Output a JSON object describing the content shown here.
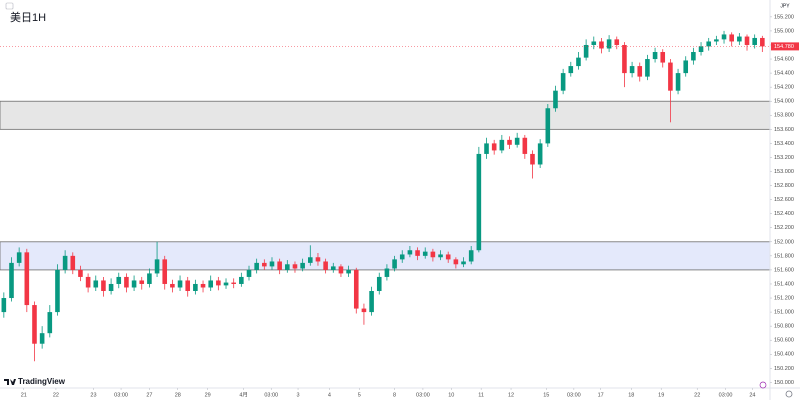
{
  "chart_data": {
    "type": "candlestick",
    "title": "美日1H",
    "currency": "JPY",
    "watermark": "TradingView",
    "up_color": "#089981",
    "down_color": "#f23645",
    "xlim": [
      -0.5,
      100
    ],
    "ylim": [
      149.92,
      155.44
    ],
    "yticks": [
      {
        "value": 155.2,
        "label": "155.200"
      },
      {
        "value": 155.0,
        "label": "155.000"
      },
      {
        "value": 154.8,
        "label": "154.800"
      },
      {
        "value": 154.6,
        "label": "154.600"
      },
      {
        "value": 154.4,
        "label": "154.400"
      },
      {
        "value": 154.2,
        "label": "154.200"
      },
      {
        "value": 154.0,
        "label": "154.000"
      },
      {
        "value": 153.8,
        "label": "153.800"
      },
      {
        "value": 153.6,
        "label": "153.600"
      },
      {
        "value": 153.4,
        "label": "153.400"
      },
      {
        "value": 153.2,
        "label": "153.200"
      },
      {
        "value": 153.0,
        "label": "153.000"
      },
      {
        "value": 152.8,
        "label": "152.800"
      },
      {
        "value": 152.6,
        "label": "152.600"
      },
      {
        "value": 152.4,
        "label": "152.400"
      },
      {
        "value": 152.2,
        "label": "152.200"
      },
      {
        "value": 152.0,
        "label": "152.000"
      },
      {
        "value": 151.8,
        "label": "151.800"
      },
      {
        "value": 151.6,
        "label": "151.600"
      },
      {
        "value": 151.4,
        "label": "151.400"
      },
      {
        "value": 151.2,
        "label": "151.200"
      },
      {
        "value": 151.0,
        "label": "151.000"
      },
      {
        "value": 150.8,
        "label": "150.800"
      },
      {
        "value": 150.6,
        "label": "150.600"
      },
      {
        "value": 150.4,
        "label": "150.400"
      },
      {
        "value": 150.2,
        "label": "150.200"
      },
      {
        "value": 150.0,
        "label": "150.000"
      }
    ],
    "xticks": [
      {
        "value": 2.6,
        "label": "21"
      },
      {
        "value": 6.8,
        "label": "22"
      },
      {
        "value": 11.7,
        "label": "23"
      },
      {
        "value": 15.3,
        "label": "03:00"
      },
      {
        "value": 19,
        "label": "27"
      },
      {
        "value": 22.7,
        "label": "28"
      },
      {
        "value": 26.6,
        "label": "29"
      },
      {
        "value": 31.3,
        "label": "4月"
      },
      {
        "value": 34.9,
        "label": "03:00"
      },
      {
        "value": 38.4,
        "label": "3"
      },
      {
        "value": 42.5,
        "label": "4"
      },
      {
        "value": 46.4,
        "label": "5"
      },
      {
        "value": 51,
        "label": "8"
      },
      {
        "value": 54.7,
        "label": "03:00"
      },
      {
        "value": 58.4,
        "label": "10"
      },
      {
        "value": 62.3,
        "label": "11"
      },
      {
        "value": 66.2,
        "label": "12"
      },
      {
        "value": 70.8,
        "label": "15"
      },
      {
        "value": 74.4,
        "label": "03:00"
      },
      {
        "value": 77.9,
        "label": "17"
      },
      {
        "value": 81.9,
        "label": "18"
      },
      {
        "value": 85.8,
        "label": "19"
      },
      {
        "value": 90.5,
        "label": "22"
      },
      {
        "value": 94.2,
        "label": "03:00"
      },
      {
        "value": 97.7,
        "label": "24"
      }
    ],
    "zones": [
      {
        "from": 153.6,
        "to": 154.0,
        "color": "#e6e6e6"
      },
      {
        "from": 151.6,
        "to": 152.0,
        "color": "#e4e9fb"
      }
    ],
    "last_price": {
      "value": 154.78,
      "label": "154.780"
    },
    "open": [
      151.0,
      151.2,
      151.7,
      151.85,
      151.1,
      150.55,
      150.7,
      151.0,
      151.6,
      151.8,
      151.6,
      151.5,
      151.35,
      151.45,
      151.3,
      151.4,
      151.5,
      151.35,
      151.45,
      151.4,
      151.55,
      151.75,
      151.4,
      151.35,
      151.45,
      151.3,
      151.4,
      151.35,
      151.45,
      151.38,
      151.42,
      151.4,
      151.5,
      151.6,
      151.7,
      151.65,
      151.72,
      151.6,
      151.68,
      151.62,
      151.7,
      151.78,
      151.72,
      151.6,
      151.65,
      151.55,
      151.6,
      151.05,
      151.0,
      151.3,
      151.5,
      151.62,
      151.75,
      151.82,
      151.88,
      151.8,
      151.86,
      151.78,
      151.82,
      151.75,
      151.68,
      151.72,
      151.88,
      153.25,
      153.4,
      153.3,
      153.45,
      153.38,
      153.48,
      153.25,
      153.1,
      153.4,
      153.9,
      154.15,
      154.4,
      154.5,
      154.62,
      154.8,
      154.85,
      154.75,
      154.88,
      154.8,
      154.4,
      154.5,
      154.35,
      154.6,
      154.7,
      154.55,
      154.15,
      154.4,
      154.58,
      154.7,
      154.78,
      154.85,
      154.88,
      154.95,
      154.85,
      154.92,
      154.8,
      154.9
    ],
    "high": [
      151.28,
      151.78,
      151.92,
      151.9,
      151.15,
      150.8,
      151.1,
      151.68,
      151.88,
      151.85,
      151.66,
      151.55,
      151.52,
      151.5,
      151.48,
      151.56,
      151.55,
      151.52,
      151.5,
      151.62,
      152.0,
      151.8,
      151.46,
      151.52,
      151.5,
      151.46,
      151.45,
      151.52,
      151.5,
      151.48,
      151.48,
      151.56,
      151.66,
      151.76,
      151.75,
      151.78,
      151.76,
      151.74,
      151.72,
      151.76,
      151.95,
      151.84,
      151.76,
      151.7,
      151.68,
      151.66,
      151.63,
      151.12,
      151.36,
      151.56,
      151.68,
      151.8,
      151.88,
      151.94,
      151.92,
      151.92,
      151.9,
      151.88,
      151.86,
      151.78,
      151.78,
      151.94,
      153.35,
      153.48,
      153.45,
      153.52,
      153.5,
      153.55,
      153.52,
      153.3,
      153.46,
      153.96,
      154.22,
      154.46,
      154.56,
      154.7,
      154.88,
      154.92,
      154.9,
      154.94,
      154.92,
      154.84,
      154.56,
      154.55,
      154.66,
      154.76,
      154.74,
      154.6,
      154.46,
      154.64,
      154.76,
      154.84,
      154.9,
      154.93,
      155.0,
      154.98,
      154.97,
      154.95,
      154.95,
      154.93
    ],
    "low": [
      150.92,
      151.15,
      151.65,
      151.0,
      150.3,
      150.48,
      150.64,
      150.95,
      151.55,
      151.54,
      151.44,
      151.28,
      151.3,
      151.22,
      151.25,
      151.34,
      151.28,
      151.3,
      151.32,
      151.35,
      151.5,
      151.32,
      151.28,
      151.3,
      151.22,
      151.25,
      151.28,
      151.3,
      151.31,
      151.33,
      151.34,
      151.36,
      151.45,
      151.55,
      151.6,
      151.6,
      151.54,
      151.56,
      151.56,
      151.58,
      151.66,
      151.66,
      151.55,
      151.56,
      151.5,
      151.5,
      150.98,
      150.82,
      150.95,
      151.25,
      151.45,
      151.58,
      151.7,
      151.78,
      151.74,
      151.76,
      151.72,
      151.74,
      151.7,
      151.62,
      151.64,
      151.68,
      151.85,
      153.18,
      153.24,
      153.26,
      153.32,
      153.34,
      153.18,
      152.9,
      153.05,
      153.35,
      153.85,
      154.1,
      154.35,
      154.45,
      154.58,
      154.74,
      154.68,
      154.7,
      154.74,
      154.2,
      154.34,
      154.28,
      154.3,
      154.55,
      154.48,
      153.7,
      154.1,
      154.35,
      154.52,
      154.65,
      154.72,
      154.8,
      154.82,
      154.78,
      154.8,
      154.72,
      154.75,
      154.7
    ],
    "close": [
      151.2,
      151.7,
      151.85,
      151.1,
      150.55,
      150.7,
      151.0,
      151.6,
      151.8,
      151.6,
      151.5,
      151.35,
      151.45,
      151.3,
      151.4,
      151.5,
      151.35,
      151.45,
      151.4,
      151.55,
      151.75,
      151.4,
      151.35,
      151.45,
      151.3,
      151.4,
      151.35,
      151.45,
      151.38,
      151.42,
      151.4,
      151.5,
      151.6,
      151.7,
      151.65,
      151.72,
      151.6,
      151.68,
      151.62,
      151.7,
      151.78,
      151.72,
      151.6,
      151.65,
      151.55,
      151.6,
      151.05,
      151.0,
      151.3,
      151.5,
      151.62,
      151.75,
      151.82,
      151.88,
      151.8,
      151.86,
      151.78,
      151.82,
      151.75,
      151.68,
      151.72,
      151.88,
      153.25,
      153.4,
      153.3,
      153.45,
      153.38,
      153.48,
      153.25,
      153.1,
      153.4,
      153.9,
      154.15,
      154.4,
      154.5,
      154.62,
      154.8,
      154.85,
      154.75,
      154.88,
      154.8,
      154.4,
      154.5,
      154.35,
      154.6,
      154.7,
      154.55,
      154.15,
      154.4,
      154.58,
      154.7,
      154.78,
      154.85,
      154.88,
      154.95,
      154.85,
      154.92,
      154.8,
      154.9,
      154.78
    ]
  }
}
